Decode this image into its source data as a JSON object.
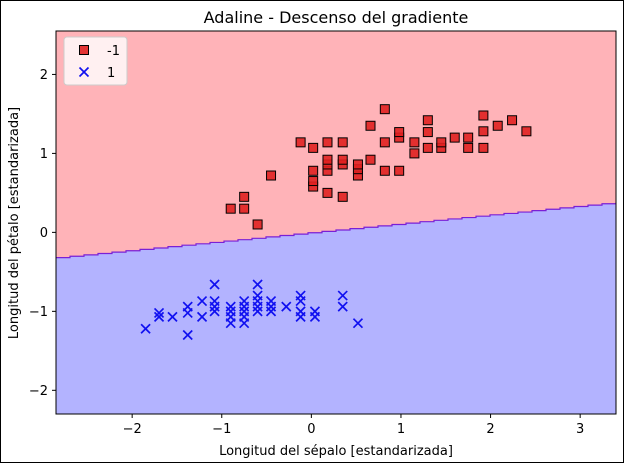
{
  "chart_data": {
    "type": "scatter",
    "title": "Adaline - Descenso del gradiente",
    "xlabel": "Longitud del sépalo [estandarizada]",
    "ylabel": "Longitud del pétalo [estandarizada]",
    "xlim": [
      -2.85,
      3.4
    ],
    "ylim": [
      -2.3,
      2.55
    ],
    "xticks": [
      -2,
      -1,
      0,
      1,
      2,
      3
    ],
    "yticks": [
      -2,
      -1,
      0,
      1,
      2
    ],
    "xtick_labels": [
      "−2",
      "−1",
      "0",
      "1",
      "2",
      "3"
    ],
    "ytick_labels": [
      "−2",
      "−1",
      "0",
      "1",
      "2"
    ],
    "grid": false,
    "legend_position": "top-left",
    "decision_boundary": {
      "x": [
        -2.85,
        3.4
      ],
      "y": [
        -0.32,
        0.38
      ]
    },
    "regions": [
      {
        "class": "-1",
        "color": "#ffb3b8",
        "side": "above"
      },
      {
        "class": "1",
        "color": "#b3b3ff",
        "side": "below"
      }
    ],
    "series": [
      {
        "name": "-1",
        "marker": "square",
        "color": "#e02020",
        "points": [
          [
            -0.9,
            0.3
          ],
          [
            -0.75,
            0.3
          ],
          [
            -0.75,
            0.45
          ],
          [
            -0.6,
            0.1
          ],
          [
            -0.45,
            0.72
          ],
          [
            -0.12,
            1.14
          ],
          [
            0.02,
            0.58
          ],
          [
            0.02,
            0.65
          ],
          [
            0.02,
            0.78
          ],
          [
            0.02,
            1.07
          ],
          [
            0.18,
            0.5
          ],
          [
            0.18,
            0.78
          ],
          [
            0.18,
            0.86
          ],
          [
            0.18,
            0.92
          ],
          [
            0.18,
            1.14
          ],
          [
            0.35,
            0.45
          ],
          [
            0.35,
            0.86
          ],
          [
            0.35,
            0.92
          ],
          [
            0.35,
            1.14
          ],
          [
            0.52,
            0.72
          ],
          [
            0.52,
            0.8
          ],
          [
            0.52,
            0.86
          ],
          [
            0.66,
            0.92
          ],
          [
            0.66,
            1.35
          ],
          [
            0.82,
            0.78
          ],
          [
            0.82,
            1.14
          ],
          [
            0.82,
            1.56
          ],
          [
            0.98,
            0.78
          ],
          [
            0.98,
            1.2
          ],
          [
            0.98,
            1.27
          ],
          [
            1.15,
            1.0
          ],
          [
            1.15,
            1.14
          ],
          [
            1.3,
            1.07
          ],
          [
            1.3,
            1.27
          ],
          [
            1.3,
            1.42
          ],
          [
            1.45,
            1.07
          ],
          [
            1.45,
            1.14
          ],
          [
            1.6,
            1.2
          ],
          [
            1.75,
            1.07
          ],
          [
            1.75,
            1.2
          ],
          [
            1.92,
            1.07
          ],
          [
            1.92,
            1.28
          ],
          [
            1.92,
            1.48
          ],
          [
            2.08,
            1.35
          ],
          [
            2.24,
            1.42
          ],
          [
            2.4,
            1.28
          ]
        ]
      },
      {
        "name": "1",
        "marker": "x",
        "color": "#1010f0",
        "points": [
          [
            -1.85,
            -1.22
          ],
          [
            -1.7,
            -1.07
          ],
          [
            -1.7,
            -1.02
          ],
          [
            -1.55,
            -1.07
          ],
          [
            -1.38,
            -1.3
          ],
          [
            -1.38,
            -1.02
          ],
          [
            -1.38,
            -0.94
          ],
          [
            -1.22,
            -1.07
          ],
          [
            -1.22,
            -0.87
          ],
          [
            -1.08,
            -0.66
          ],
          [
            -1.08,
            -0.87
          ],
          [
            -1.08,
            -0.94
          ],
          [
            -1.08,
            -1.0
          ],
          [
            -0.9,
            -0.94
          ],
          [
            -0.9,
            -1.0
          ],
          [
            -0.9,
            -1.07
          ],
          [
            -0.9,
            -1.15
          ],
          [
            -0.75,
            -0.87
          ],
          [
            -0.75,
            -0.94
          ],
          [
            -0.75,
            -1.0
          ],
          [
            -0.75,
            -1.07
          ],
          [
            -0.75,
            -1.15
          ],
          [
            -0.6,
            -0.66
          ],
          [
            -0.6,
            -0.8
          ],
          [
            -0.6,
            -0.87
          ],
          [
            -0.6,
            -0.94
          ],
          [
            -0.6,
            -1.0
          ],
          [
            -0.45,
            -0.87
          ],
          [
            -0.45,
            -0.94
          ],
          [
            -0.45,
            -1.0
          ],
          [
            -0.28,
            -0.94
          ],
          [
            -0.12,
            -0.8
          ],
          [
            -0.12,
            -0.87
          ],
          [
            -0.12,
            -1.0
          ],
          [
            -0.12,
            -1.07
          ],
          [
            0.04,
            -1.0
          ],
          [
            0.04,
            -1.07
          ],
          [
            0.35,
            -0.8
          ],
          [
            0.35,
            -0.94
          ],
          [
            0.52,
            -1.15
          ]
        ]
      }
    ]
  }
}
